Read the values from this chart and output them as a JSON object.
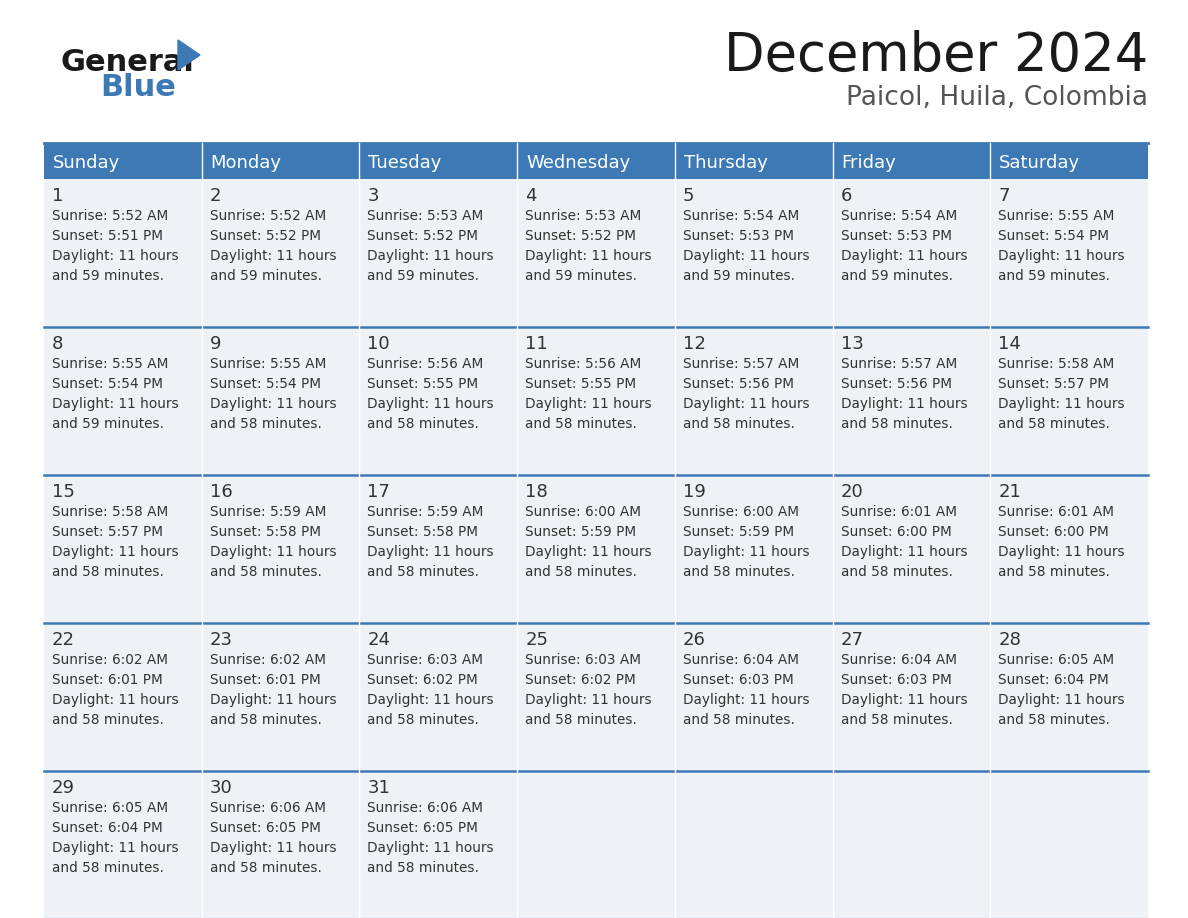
{
  "title": "December 2024",
  "subtitle": "Paicol, Huila, Colombia",
  "header_color": "#3d7ab5",
  "header_text_color": "#ffffff",
  "cell_bg_color": "#eef2f7",
  "border_color": "#3d7ab5",
  "days_of_week": [
    "Sunday",
    "Monday",
    "Tuesday",
    "Wednesday",
    "Thursday",
    "Friday",
    "Saturday"
  ],
  "weeks": [
    [
      {
        "day": 1,
        "sunrise": "5:52 AM",
        "sunset": "5:51 PM",
        "daylight": "11 hours\nand 59 minutes."
      },
      {
        "day": 2,
        "sunrise": "5:52 AM",
        "sunset": "5:52 PM",
        "daylight": "11 hours\nand 59 minutes."
      },
      {
        "day": 3,
        "sunrise": "5:53 AM",
        "sunset": "5:52 PM",
        "daylight": "11 hours\nand 59 minutes."
      },
      {
        "day": 4,
        "sunrise": "5:53 AM",
        "sunset": "5:52 PM",
        "daylight": "11 hours\nand 59 minutes."
      },
      {
        "day": 5,
        "sunrise": "5:54 AM",
        "sunset": "5:53 PM",
        "daylight": "11 hours\nand 59 minutes."
      },
      {
        "day": 6,
        "sunrise": "5:54 AM",
        "sunset": "5:53 PM",
        "daylight": "11 hours\nand 59 minutes."
      },
      {
        "day": 7,
        "sunrise": "5:55 AM",
        "sunset": "5:54 PM",
        "daylight": "11 hours\nand 59 minutes."
      }
    ],
    [
      {
        "day": 8,
        "sunrise": "5:55 AM",
        "sunset": "5:54 PM",
        "daylight": "11 hours\nand 59 minutes."
      },
      {
        "day": 9,
        "sunrise": "5:55 AM",
        "sunset": "5:54 PM",
        "daylight": "11 hours\nand 58 minutes."
      },
      {
        "day": 10,
        "sunrise": "5:56 AM",
        "sunset": "5:55 PM",
        "daylight": "11 hours\nand 58 minutes."
      },
      {
        "day": 11,
        "sunrise": "5:56 AM",
        "sunset": "5:55 PM",
        "daylight": "11 hours\nand 58 minutes."
      },
      {
        "day": 12,
        "sunrise": "5:57 AM",
        "sunset": "5:56 PM",
        "daylight": "11 hours\nand 58 minutes."
      },
      {
        "day": 13,
        "sunrise": "5:57 AM",
        "sunset": "5:56 PM",
        "daylight": "11 hours\nand 58 minutes."
      },
      {
        "day": 14,
        "sunrise": "5:58 AM",
        "sunset": "5:57 PM",
        "daylight": "11 hours\nand 58 minutes."
      }
    ],
    [
      {
        "day": 15,
        "sunrise": "5:58 AM",
        "sunset": "5:57 PM",
        "daylight": "11 hours\nand 58 minutes."
      },
      {
        "day": 16,
        "sunrise": "5:59 AM",
        "sunset": "5:58 PM",
        "daylight": "11 hours\nand 58 minutes."
      },
      {
        "day": 17,
        "sunrise": "5:59 AM",
        "sunset": "5:58 PM",
        "daylight": "11 hours\nand 58 minutes."
      },
      {
        "day": 18,
        "sunrise": "6:00 AM",
        "sunset": "5:59 PM",
        "daylight": "11 hours\nand 58 minutes."
      },
      {
        "day": 19,
        "sunrise": "6:00 AM",
        "sunset": "5:59 PM",
        "daylight": "11 hours\nand 58 minutes."
      },
      {
        "day": 20,
        "sunrise": "6:01 AM",
        "sunset": "6:00 PM",
        "daylight": "11 hours\nand 58 minutes."
      },
      {
        "day": 21,
        "sunrise": "6:01 AM",
        "sunset": "6:00 PM",
        "daylight": "11 hours\nand 58 minutes."
      }
    ],
    [
      {
        "day": 22,
        "sunrise": "6:02 AM",
        "sunset": "6:01 PM",
        "daylight": "11 hours\nand 58 minutes."
      },
      {
        "day": 23,
        "sunrise": "6:02 AM",
        "sunset": "6:01 PM",
        "daylight": "11 hours\nand 58 minutes."
      },
      {
        "day": 24,
        "sunrise": "6:03 AM",
        "sunset": "6:02 PM",
        "daylight": "11 hours\nand 58 minutes."
      },
      {
        "day": 25,
        "sunrise": "6:03 AM",
        "sunset": "6:02 PM",
        "daylight": "11 hours\nand 58 minutes."
      },
      {
        "day": 26,
        "sunrise": "6:04 AM",
        "sunset": "6:03 PM",
        "daylight": "11 hours\nand 58 minutes."
      },
      {
        "day": 27,
        "sunrise": "6:04 AM",
        "sunset": "6:03 PM",
        "daylight": "11 hours\nand 58 minutes."
      },
      {
        "day": 28,
        "sunrise": "6:05 AM",
        "sunset": "6:04 PM",
        "daylight": "11 hours\nand 58 minutes."
      }
    ],
    [
      {
        "day": 29,
        "sunrise": "6:05 AM",
        "sunset": "6:04 PM",
        "daylight": "11 hours\nand 58 minutes."
      },
      {
        "day": 30,
        "sunrise": "6:06 AM",
        "sunset": "6:05 PM",
        "daylight": "11 hours\nand 58 minutes."
      },
      {
        "day": 31,
        "sunrise": "6:06 AM",
        "sunset": "6:05 PM",
        "daylight": "11 hours\nand 58 minutes."
      },
      null,
      null,
      null,
      null
    ]
  ],
  "title_fontsize": 38,
  "subtitle_fontsize": 19,
  "header_fontsize": 13,
  "day_num_fontsize": 13,
  "cell_text_fontsize": 9.8
}
